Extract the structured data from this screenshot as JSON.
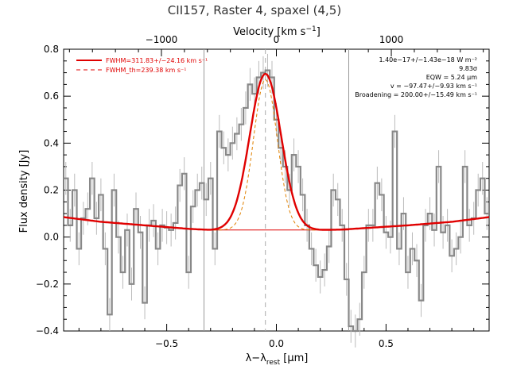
{
  "chart_data": {
    "type": "line",
    "title": "CII157, Raster 4, spaxel (4,5)",
    "xlabel": "λ−λrest [μm]",
    "xlabel_parts": {
      "main": "λ−λ",
      "sub": "rest",
      "unit": " [μm]"
    },
    "ylabel": "Flux density [Jy]",
    "top_axis_label": "Velocity [km s⁻¹]",
    "top_axis_label_parts": {
      "main": "Velocity [km s",
      "sup": "−1",
      "close": "]"
    },
    "xlim": [
      -0.97,
      0.97
    ],
    "ylim": [
      -0.4,
      0.8
    ],
    "x_ticks": [
      -0.5,
      0.0,
      0.5
    ],
    "x_tick_labels": [
      "−0.5",
      "0.0",
      "0.5"
    ],
    "y_ticks": [
      -0.4,
      -0.2,
      0.0,
      0.2,
      0.4,
      0.6,
      0.8
    ],
    "y_tick_labels": [
      "−0.4",
      "−0.2",
      "0.0",
      "0.2",
      "0.4",
      "0.6",
      "0.8"
    ],
    "top_ticks_velocity": [
      -1000,
      0,
      1000
    ],
    "top_tick_labels": [
      "−1000",
      "0",
      "1000"
    ],
    "velocity_per_micron": 1908,
    "vertical_lines_x": [
      -0.33,
      0.33
    ],
    "dashed_line_x": -0.05,
    "legend": [
      {
        "label": "FWHM=311.83+/−24.16 km s⁻¹",
        "color": "#e00000",
        "style": "solid"
      },
      {
        "label": "FWHM_th=239.38 km s⁻¹",
        "color": "#e00000",
        "style": "dashed"
      }
    ],
    "annotations": [
      "1.40e−17+/−1.43e−18 W m⁻²",
      "9.83σ",
      "EQW = 5.24 μm",
      "v = −97.47+/−9.93 km s⁻¹",
      "Broadening = 200.00+/−15.49 km s⁻¹"
    ],
    "spectrum": {
      "name": "data",
      "color": "#888888",
      "x": [
        -0.96,
        -0.94,
        -0.92,
        -0.9,
        -0.88,
        -0.86,
        -0.84,
        -0.82,
        -0.8,
        -0.78,
        -0.76,
        -0.74,
        -0.72,
        -0.7,
        -0.68,
        -0.66,
        -0.64,
        -0.62,
        -0.6,
        -0.58,
        -0.56,
        -0.54,
        -0.52,
        -0.5,
        -0.48,
        -0.46,
        -0.44,
        -0.42,
        -0.4,
        -0.38,
        -0.36,
        -0.34,
        -0.32,
        -0.3,
        -0.28,
        -0.26,
        -0.24,
        -0.22,
        -0.2,
        -0.18,
        -0.16,
        -0.14,
        -0.12,
        -0.1,
        -0.08,
        -0.06,
        -0.04,
        -0.02,
        0.0,
        0.02,
        0.04,
        0.06,
        0.08,
        0.1,
        0.12,
        0.14,
        0.16,
        0.18,
        0.2,
        0.22,
        0.24,
        0.26,
        0.28,
        0.3,
        0.32,
        0.34,
        0.36,
        0.38,
        0.4,
        0.42,
        0.44,
        0.46,
        0.48,
        0.5,
        0.52,
        0.54,
        0.56,
        0.58,
        0.6,
        0.62,
        0.64,
        0.66,
        0.68,
        0.7,
        0.72,
        0.74,
        0.76,
        0.78,
        0.8,
        0.82,
        0.84,
        0.86,
        0.88,
        0.9,
        0.92,
        0.94,
        0.96
      ],
      "y": [
        0.25,
        0.05,
        0.2,
        -0.05,
        0.08,
        0.12,
        0.25,
        0.08,
        0.18,
        -0.05,
        -0.33,
        0.2,
        0.0,
        -0.15,
        0.03,
        -0.2,
        0.12,
        0.02,
        -0.28,
        0.05,
        0.07,
        -0.05,
        0.05,
        0.04,
        0.03,
        0.06,
        0.22,
        0.27,
        -0.15,
        0.13,
        0.2,
        0.23,
        0.16,
        0.25,
        -0.05,
        0.45,
        0.38,
        0.35,
        0.4,
        0.44,
        0.48,
        0.55,
        0.65,
        0.61,
        0.68,
        0.7,
        0.71,
        0.68,
        0.5,
        0.38,
        0.3,
        0.2,
        0.35,
        0.3,
        0.18,
        0.05,
        -0.05,
        -0.12,
        -0.17,
        -0.14,
        -0.04,
        0.2,
        0.16,
        0.05,
        -0.18,
        -0.38,
        -0.4,
        -0.35,
        -0.15,
        0.05,
        0.05,
        0.23,
        0.18,
        0.02,
        0.0,
        0.45,
        -0.05,
        0.1,
        -0.15,
        -0.05,
        -0.1,
        -0.27,
        0.05,
        0.1,
        0.03,
        0.3,
        0.02,
        0.05,
        -0.08,
        -0.05,
        0.0,
        0.3,
        0.05,
        0.08,
        0.2,
        0.25,
        0.1
      ],
      "err": 0.07
    },
    "gaussian_fit": {
      "center": -0.05,
      "fwhm": 0.168,
      "amplitude": 0.665,
      "color": "#e00000"
    },
    "thermal_profile": {
      "center": -0.05,
      "fwhm": 0.128,
      "amplitude": 0.64,
      "color": "#e08000"
    },
    "baseline": {
      "x": [
        -0.97,
        -0.8,
        -0.6,
        -0.4,
        -0.3,
        -0.2,
        0.0,
        0.2,
        0.3,
        0.4,
        0.6,
        0.8,
        0.97
      ],
      "y": [
        0.085,
        0.065,
        0.05,
        0.035,
        0.03,
        0.03,
        0.03,
        0.03,
        0.032,
        0.038,
        0.05,
        0.065,
        0.085
      ]
    }
  }
}
